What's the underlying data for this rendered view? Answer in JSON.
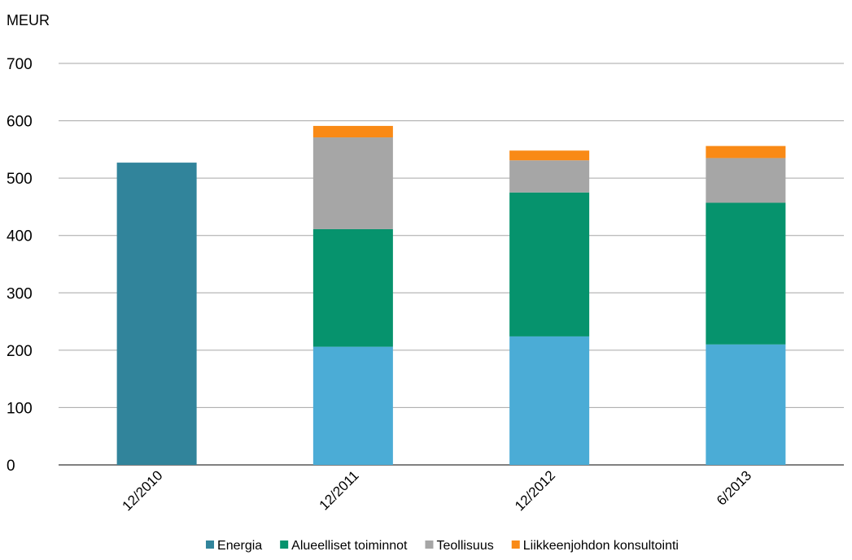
{
  "chart_data": {
    "type": "bar",
    "stacked": true,
    "ylabel": "MEUR",
    "ylim": [
      0,
      700
    ],
    "yticks": [
      0,
      100,
      200,
      300,
      400,
      500,
      600,
      700
    ],
    "grid": true,
    "legend_position": "bottom",
    "categories": [
      "12/2010",
      "12/2011",
      "12/2012",
      "6/2013"
    ],
    "series": [
      {
        "name": "Energia",
        "color": "#31849B",
        "values": [
          527,
          0,
          0,
          0
        ]
      },
      {
        "name": "Energia",
        "legend": false,
        "color": "#4BACD6",
        "values": [
          0,
          206,
          224,
          210
        ]
      },
      {
        "name": "Alueelliset toiminnot",
        "color": "#06936D",
        "values": [
          0,
          205,
          251,
          247
        ]
      },
      {
        "name": "Teollisuus",
        "color": "#A6A6A6",
        "values": [
          0,
          160,
          56,
          78
        ]
      },
      {
        "name": "Liikkeenjohdon konsultointi",
        "color": "#F98A16",
        "values": [
          0,
          20,
          17,
          21
        ]
      }
    ]
  }
}
